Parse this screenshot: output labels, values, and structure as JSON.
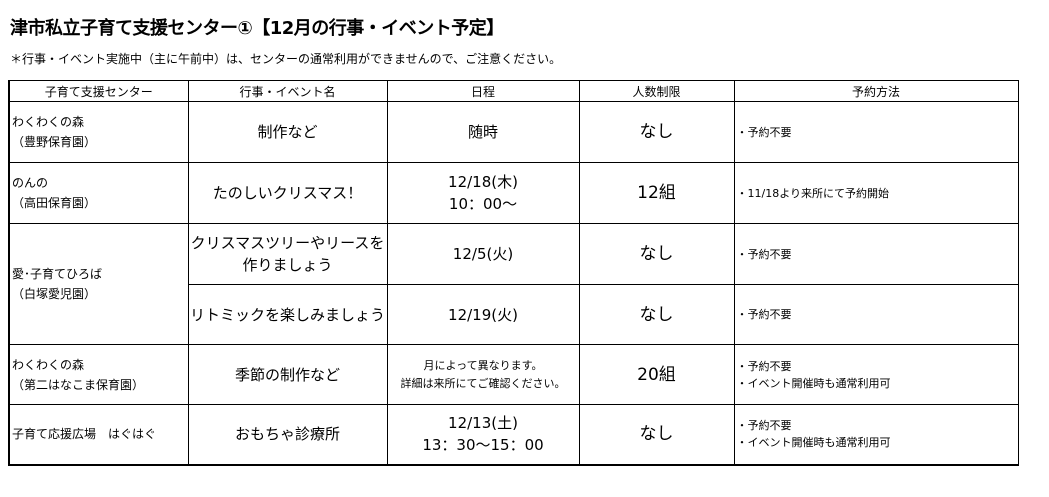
{
  "title": "津市私立子育て支援センター①【12月の行事・イベント予定】",
  "note": "＊行事・イベント実施中（主に午前中）は、センターの通常利用ができませんので、ご注意ください。",
  "headers": [
    "子育て支援センター",
    "行事・イベント名",
    "日程",
    "人数制限",
    "予約方法"
  ],
  "rows": [
    {
      "center": "わくわくの森",
      "center_sub": "（豊野保育園）",
      "event": "制作など",
      "date": "随時",
      "date2": "",
      "limit": "なし",
      "reserve": "・予約不要",
      "reserve2": ""
    },
    {
      "center": "のんの",
      "center_sub": "（高田保育園）",
      "event": "たのしいクリスマス！",
      "date": "12/18(木)",
      "date2": "10：00～",
      "limit": "12組",
      "reserve": "・11/18より来所にて予約開始",
      "reserve2": ""
    },
    {
      "center": "愛･子育てひろば",
      "center_sub": "（白塚愛児園）",
      "event": "クリスマスツリーやリースを",
      "event2": "作りましょう",
      "date": "12/5(火)",
      "date2": "",
      "limit": "なし",
      "reserve": "・予約不要",
      "reserve2": ""
    },
    {
      "event": "リトミックを楽しみましょう",
      "date": "12/19(火)",
      "limit": "なし",
      "reserve": "・予約不要"
    },
    {
      "center": "わくわくの森",
      "center_sub": "（第二はなこま保育園）",
      "event": "季節の制作など",
      "date": "月によって異なります。",
      "date2": "詳細は来所にてご確認ください。",
      "limit": "20組",
      "reserve": "・予約不要",
      "reserve2": "・イベント開催時も通常利用可"
    },
    {
      "center": "子育て応援広場　はぐはぐ",
      "event": "おもちゃ診療所",
      "date": "12/13(土)",
      "date2": "13：30～15：00",
      "limit": "なし",
      "reserve": "・予約不要",
      "reserve2": "・イベント開催時も通常利用可"
    }
  ]
}
